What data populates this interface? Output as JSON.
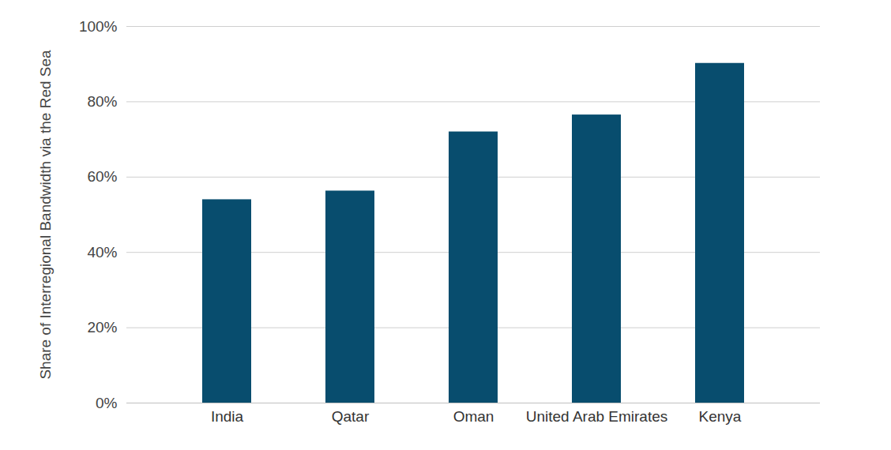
{
  "chart_data": {
    "type": "bar",
    "ylabel": "Share of Interregional Bandwidth via the Red Sea",
    "categories": [
      "India",
      "Qatar",
      "Oman",
      "United Arab Emirates",
      "Kenya"
    ],
    "values": [
      54,
      56.3,
      72,
      76.5,
      90.2
    ],
    "color": "#084d6e",
    "ylim": [
      0,
      100
    ],
    "yticks": [
      {
        "value": 0,
        "label": "0%"
      },
      {
        "value": 20,
        "label": "20%"
      },
      {
        "value": 40,
        "label": "40%"
      },
      {
        "value": 60,
        "label": "60%"
      },
      {
        "value": 80,
        "label": "80%"
      },
      {
        "value": 100,
        "label": "100%"
      }
    ],
    "grid": true
  }
}
